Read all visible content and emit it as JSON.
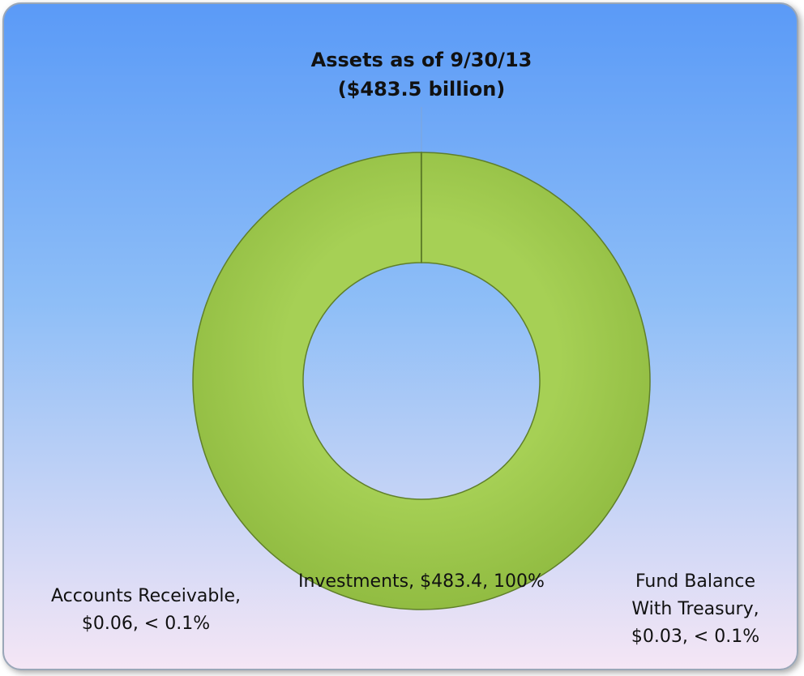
{
  "chart_data": {
    "type": "pie",
    "donut": true,
    "title": "Assets as of 9/30/13",
    "subtitle": "($483.5 billion)",
    "values": [
      483.4,
      0.06,
      0.03
    ],
    "value_labels": [
      [
        "Investments, $483.4, 100%"
      ],
      [
        "Accounts Receivable,",
        "$0.06, < 0.1%"
      ],
      [
        "Fund Balance",
        "With Treasury,",
        "$0.03, < 0.1%"
      ]
    ],
    "colors": [
      "#9bc84a",
      "#4f81bd",
      "#c0504d"
    ]
  }
}
